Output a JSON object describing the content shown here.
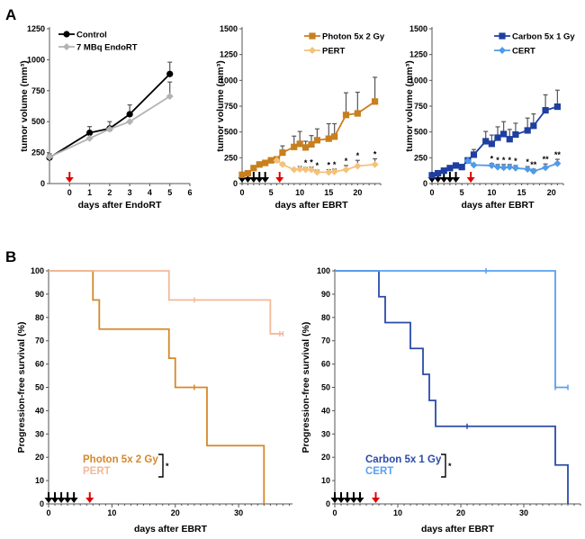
{
  "panels": {
    "a": "A",
    "b": "B"
  },
  "chart_data": [
    {
      "id": "endort",
      "type": "line",
      "title": "",
      "xlabel": "days after EndoRT",
      "ylabel": "tumor volume (mm³)",
      "xlim": [
        -1,
        6
      ],
      "ylim": [
        0,
        1250
      ],
      "xticks": [
        0,
        1,
        2,
        3,
        4,
        5,
        6
      ],
      "yticks": [
        0,
        250,
        500,
        750,
        1000,
        1250
      ],
      "legend": "top-left",
      "treatment_arrow_day": 0,
      "series": [
        {
          "name": "Control",
          "color": "#000000",
          "marker": "circle",
          "x": [
            -1,
            1,
            2,
            3,
            5
          ],
          "y": [
            210,
            410,
            445,
            560,
            885
          ],
          "err": [
            30,
            50,
            55,
            75,
            95
          ]
        },
        {
          "name": "7 MBq EndoRT",
          "color": "#b3b3b3",
          "marker": "diamond",
          "x": [
            -1,
            1,
            2,
            3,
            5
          ],
          "y": [
            215,
            365,
            440,
            500,
            705
          ],
          "err": [
            0,
            0,
            0,
            0,
            115
          ]
        }
      ]
    },
    {
      "id": "photon",
      "type": "line",
      "title": "",
      "xlabel": "days after EBRT",
      "ylabel": "tumor volume (mm³)",
      "xlim": [
        0,
        24
      ],
      "ylim": [
        0,
        1500
      ],
      "xticks": [
        0,
        5,
        10,
        15,
        20
      ],
      "yticks": [
        0,
        250,
        500,
        750,
        1000,
        1250,
        1500
      ],
      "legend": "top-right",
      "fraction_days": [
        0,
        1,
        2,
        3,
        4
      ],
      "treatment_arrow_day": 6.5,
      "series": [
        {
          "name": "Photon 5x 2 Gy",
          "color": "#c87f1e",
          "marker": "square",
          "x": [
            0,
            1,
            2,
            3,
            4,
            5,
            6,
            7,
            9,
            10,
            11,
            12,
            13,
            15,
            16,
            18,
            20,
            23
          ],
          "y": [
            85,
            100,
            150,
            185,
            200,
            225,
            235,
            300,
            355,
            385,
            350,
            380,
            420,
            435,
            455,
            665,
            680,
            795
          ],
          "err": [
            0,
            0,
            0,
            0,
            0,
            0,
            25,
            65,
            105,
            120,
            60,
            85,
            110,
            145,
            125,
            215,
            205,
            235
          ]
        },
        {
          "name": "PERT",
          "color": "#f4c27a",
          "marker": "diamond",
          "x": [
            6,
            7,
            9,
            10,
            11,
            12,
            13,
            15,
            16,
            18,
            20,
            23
          ],
          "y": [
            225,
            185,
            135,
            140,
            135,
            135,
            110,
            110,
            115,
            135,
            170,
            185
          ],
          "err": [
            0,
            15,
            0,
            25,
            20,
            25,
            20,
            25,
            25,
            40,
            55,
            55
          ],
          "significance": [
            "",
            "",
            "",
            "",
            "*",
            "*",
            "*",
            "*",
            "*",
            "*",
            "*",
            "*"
          ]
        }
      ]
    },
    {
      "id": "carbon",
      "type": "line",
      "title": "",
      "xlabel": "days after EBRT",
      "ylabel": "tumor volume (mm³)",
      "xlim": [
        0,
        22
      ],
      "ylim": [
        0,
        1500
      ],
      "xticks": [
        0,
        5,
        10,
        15,
        20
      ],
      "yticks": [
        0,
        250,
        500,
        750,
        1000,
        1250,
        1500
      ],
      "legend": "top-right",
      "fraction_days": [
        0,
        1,
        2,
        3,
        4
      ],
      "treatment_arrow_day": 6.5,
      "series": [
        {
          "name": "Carbon 5x 1 Gy",
          "color": "#1f3fa0",
          "marker": "square",
          "x": [
            0,
            1,
            2,
            3,
            4,
            5,
            6,
            7,
            9,
            10,
            11,
            12,
            13,
            14,
            16,
            17,
            19,
            21
          ],
          "y": [
            80,
            100,
            125,
            150,
            175,
            160,
            225,
            280,
            410,
            385,
            445,
            480,
            430,
            475,
            515,
            560,
            710,
            745
          ],
          "err": [
            0,
            0,
            0,
            0,
            0,
            0,
            15,
            50,
            95,
            85,
            105,
            120,
            95,
            110,
            120,
            115,
            150,
            160
          ]
        },
        {
          "name": "CERT",
          "color": "#4f9be8",
          "marker": "diamond",
          "x": [
            6,
            7,
            10,
            11,
            12,
            13,
            14,
            16,
            17,
            19,
            21
          ],
          "y": [
            220,
            180,
            175,
            160,
            155,
            160,
            150,
            140,
            120,
            155,
            195
          ],
          "err": [
            0,
            0,
            20,
            25,
            30,
            25,
            25,
            25,
            20,
            35,
            40
          ],
          "significance": [
            "",
            "",
            "*",
            "*",
            "*",
            "*",
            "*",
            "*",
            "**",
            "**",
            "**"
          ]
        }
      ]
    },
    {
      "id": "km-photon",
      "type": "line",
      "xlabel": "days after EBRT",
      "ylabel": "Progression-free survival (%)",
      "xlim": [
        0,
        38.5
      ],
      "ylim": [
        0,
        100
      ],
      "xticks": [
        0,
        10,
        20,
        30
      ],
      "yticks": [
        0,
        10,
        20,
        30,
        40,
        50,
        60,
        70,
        80,
        90,
        100
      ],
      "legend": "bottom-left",
      "significance_label": "*",
      "fraction_days": [
        0,
        1,
        2,
        3,
        4
      ],
      "treatment_arrow_day": 6.5,
      "series": [
        {
          "name": "Photon 5x 2 Gy",
          "color": "#d4892a",
          "steps": [
            [
              0,
              100
            ],
            [
              7,
              87.5
            ],
            [
              8,
              75
            ],
            [
              19,
              62.5
            ],
            [
              20,
              50
            ],
            [
              25,
              25
            ],
            [
              34,
              0
            ]
          ],
          "censored": [
            [
              23,
              50
            ]
          ]
        },
        {
          "name": "PERT",
          "color": "#f2b99a",
          "steps": [
            [
              0,
              100
            ],
            [
              19,
              87.5
            ],
            [
              35,
              73
            ],
            [
              37,
              73
            ]
          ],
          "censored": [
            [
              23,
              87.5
            ],
            [
              36.5,
              73
            ],
            [
              37,
              73
            ]
          ]
        }
      ]
    },
    {
      "id": "km-carbon",
      "type": "line",
      "xlabel": "days after EBRT",
      "ylabel": "Progression-free survival (%)",
      "xlim": [
        0,
        39
      ],
      "ylim": [
        0,
        100
      ],
      "xticks": [
        0,
        10,
        20,
        30
      ],
      "yticks": [
        0,
        10,
        20,
        30,
        40,
        50,
        60,
        70,
        80,
        90,
        100
      ],
      "legend": "bottom-left",
      "significance_label": "*",
      "fraction_days": [
        0,
        1,
        2,
        3,
        4
      ],
      "treatment_arrow_day": 6.5,
      "series": [
        {
          "name": "Carbon 5x 1 Gy",
          "color": "#2a4aa8",
          "steps": [
            [
              0,
              100
            ],
            [
              7,
              88.9
            ],
            [
              8,
              77.8
            ],
            [
              12,
              66.7
            ],
            [
              14,
              55.6
            ],
            [
              15,
              44.4
            ],
            [
              16,
              33.3
            ],
            [
              35,
              16.7
            ],
            [
              37,
              0
            ]
          ],
          "censored": [
            [
              21,
              33.3
            ]
          ]
        },
        {
          "name": "CERT",
          "color": "#5aa0f0",
          "steps": [
            [
              0,
              100
            ],
            [
              35,
              50
            ],
            [
              37,
              50
            ]
          ],
          "censored": [
            [
              24,
              100
            ],
            [
              35,
              50
            ],
            [
              37,
              50
            ]
          ]
        }
      ]
    }
  ]
}
